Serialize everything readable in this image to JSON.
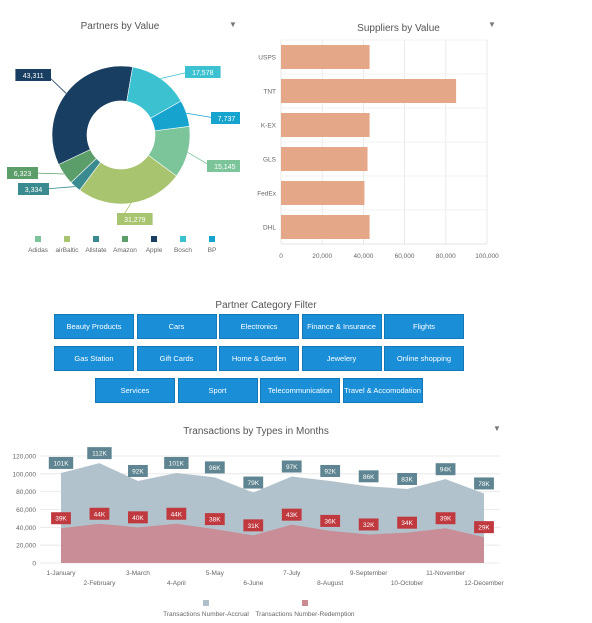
{
  "charts": {
    "partners": {
      "title": "Partners by Value",
      "filter_icon": "filter-icon"
    },
    "suppliers": {
      "title": "Suppliers by Value",
      "filter_icon": "filter-icon"
    },
    "filter": {
      "title": "Partner Category Filter"
    },
    "transactions": {
      "title": "Transactions by Types in Months",
      "filter_icon": "filter-icon"
    }
  },
  "categories": [
    [
      "Beauty Products",
      "Cars",
      "Electronics",
      "Finance & Insurance",
      "Flights"
    ],
    [
      "Gas Station",
      "Gift Cards",
      "Home & Garden",
      "Jewelery",
      "Online shopping"
    ],
    [
      "Services",
      "Sport",
      "Telecommunication",
      "Travel & Accomodation"
    ]
  ],
  "colors": {
    "button": "#1a8fd8",
    "accrual": "#aebfc9",
    "redemption": "#c98a92"
  },
  "chart_data": [
    {
      "type": "pie",
      "title": "Partners by Value",
      "donut": true,
      "slices": [
        {
          "name": "Adidas",
          "value": 15145,
          "label": "15,145",
          "color": "#7cc49a"
        },
        {
          "name": "airBaltic",
          "value": 31279,
          "label": "31,279",
          "color": "#a9c46e"
        },
        {
          "name": "Allstate",
          "value": 3334,
          "label": "3,334",
          "color": "#3a8b8f"
        },
        {
          "name": "Amazon",
          "value": 6323,
          "label": "6,323",
          "color": "#5c9e69"
        },
        {
          "name": "Apple",
          "value": 43311,
          "label": "43,311",
          "color": "#183e61"
        },
        {
          "name": "Bosch",
          "value": 17578,
          "label": "17,578",
          "color": "#3bc1d0"
        },
        {
          "name": "BP",
          "value": 7737,
          "label": "7,737",
          "color": "#16a4cf"
        }
      ],
      "legend": "bottom"
    },
    {
      "type": "bar",
      "orientation": "horizontal",
      "title": "Suppliers by Value",
      "categories": [
        "USPS",
        "TNT",
        "K-EX",
        "GLS",
        "FedEx",
        "DHL"
      ],
      "values": [
        43000,
        85000,
        43000,
        42000,
        40500,
        43000
      ],
      "xlim": [
        0,
        100000
      ],
      "ticks": [
        "0",
        "20,000",
        "40,000",
        "60,000",
        "80,000",
        "100,000"
      ],
      "color": "#e4a889",
      "grid": true
    },
    {
      "type": "area",
      "title": "Transactions by Types in Months",
      "categories": [
        "1-January",
        "2-February",
        "3-March",
        "4-April",
        "5-May",
        "6-June",
        "7-July",
        "8-August",
        "9-September",
        "10-October",
        "11-November",
        "12-December"
      ],
      "ylim": [
        0,
        120000
      ],
      "yticks": [
        "0",
        "20,000",
        "40,000",
        "60,000",
        "80,000",
        "100,000",
        "120,000"
      ],
      "series": [
        {
          "name": "Transactions Number-Accrual",
          "color": "#aebfc9",
          "values": [
            101000,
            112000,
            92000,
            101000,
            96000,
            79000,
            97000,
            92000,
            86000,
            83000,
            94000,
            78000
          ],
          "labels": [
            "101K",
            "112K",
            "92K",
            "101K",
            "96K",
            "79K",
            "97K",
            "92K",
            "86K",
            "83K",
            "94K",
            "78K"
          ]
        },
        {
          "name": "Transactions Number-Redemption",
          "color": "#c98a92",
          "values": [
            39000,
            44000,
            40000,
            44000,
            38000,
            31000,
            43000,
            36000,
            32000,
            34000,
            39000,
            29000
          ],
          "labels": [
            "39K",
            "44K",
            "40K",
            "44K",
            "38K",
            "31K",
            "43K",
            "36K",
            "32K",
            "34K",
            "39K",
            "29K"
          ]
        }
      ],
      "legend": "bottom",
      "grid": true
    }
  ]
}
